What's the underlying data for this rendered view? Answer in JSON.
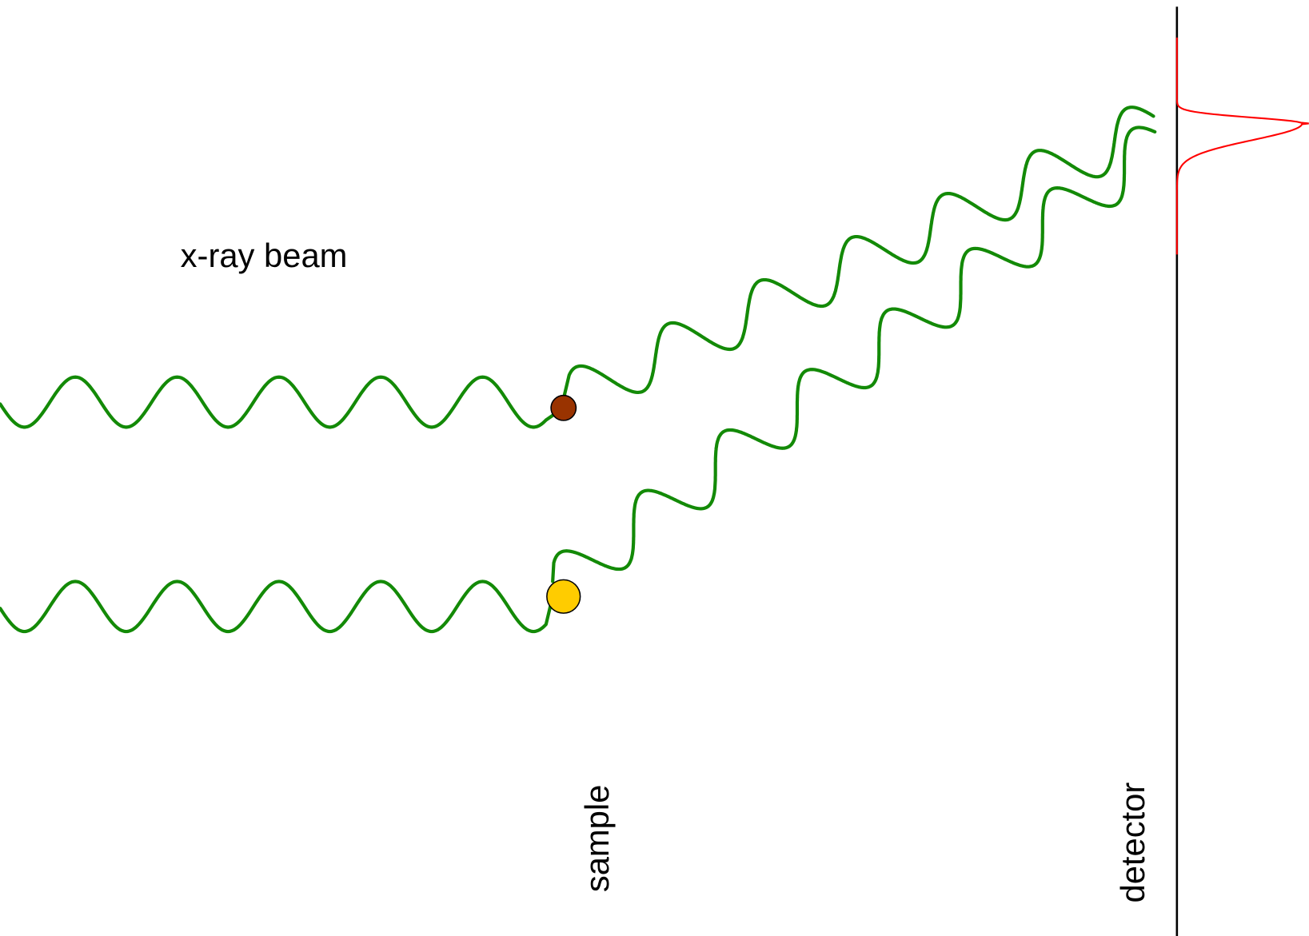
{
  "labels": {
    "beam": "x-ray beam",
    "sample": "sample",
    "detector": "detector"
  }
}
